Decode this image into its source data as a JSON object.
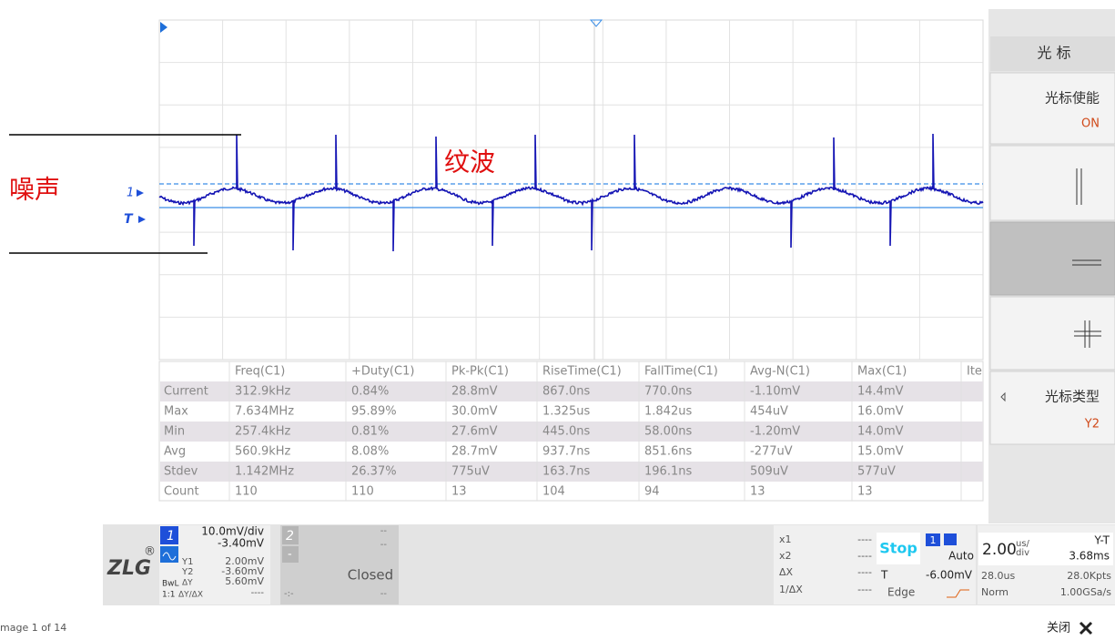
{
  "annotations": {
    "noise": "噪声",
    "ripple": "纹波"
  },
  "markers": {
    "ch1": "1",
    "trigger": "T"
  },
  "table": {
    "header": [
      "Freq(C1)",
      "+Duty(C1)",
      "Pk-Pk(C1)",
      "RiseTime(C1)",
      "FallTime(C1)",
      "Avg-N(C1)",
      "Max(C1)",
      "Ite"
    ],
    "rows": [
      [
        "Current",
        "312.9kHz",
        "0.84%",
        "28.8mV",
        "867.0ns",
        "770.0ns",
        "-1.10mV",
        "14.4mV"
      ],
      [
        "Max",
        "7.634MHz",
        "95.89%",
        "30.0mV",
        "1.325us",
        "1.842us",
        "454uV",
        "16.0mV"
      ],
      [
        "Min",
        "257.4kHz",
        "0.81%",
        "27.6mV",
        "445.0ns",
        "58.00ns",
        "-1.20mV",
        "14.0mV"
      ],
      [
        "Avg",
        "560.9kHz",
        "8.08%",
        "28.7mV",
        "937.7ns",
        "851.6ns",
        "-277uV",
        "15.0mV"
      ],
      [
        "Stdev",
        "1.142MHz",
        "26.37%",
        "775uV",
        "163.7ns",
        "196.1ns",
        "509uV",
        "577uV"
      ],
      [
        "Count",
        "110",
        "110",
        "13",
        "104",
        "94",
        "13",
        "13"
      ]
    ]
  },
  "menu": {
    "title": "光 标",
    "enable": {
      "label": "光标使能",
      "value": "ON"
    },
    "type": {
      "label": "光标类型",
      "value": "Y2"
    }
  },
  "status": {
    "logo": "ZLG",
    "reg": "®",
    "ch1": {
      "num": "1",
      "scale": "10.0mV/div",
      "offset": "-3.40mV",
      "y1_label": "Y1",
      "y1": "2.00mV",
      "y2_label": "Y2",
      "y2": "-3.60mV",
      "bwl": "BwL",
      "dy_label": "ΔY",
      "dy": "5.60mV",
      "ratio": "1:1",
      "dydx_label": "ΔY/ΔX",
      "dydx": "----"
    },
    "ch2": {
      "num": "2",
      "a": "--",
      "b": "--",
      "minus": "-",
      "state": "Closed",
      "c": "-:-",
      "d": "--"
    },
    "cursor_x": {
      "x1_label": "x1",
      "x1": "----",
      "x2_label": "x2",
      "x2": "----",
      "dx_label": "ΔX",
      "dx": "----",
      "inv_label": "1/ΔX",
      "inv": "----"
    },
    "trigger": {
      "run": "Stop",
      "source": "1",
      "mode": "Auto",
      "t_label": "T",
      "level": "-6.00mV",
      "type": "Edge"
    },
    "timebase": {
      "value": "2.00",
      "unit_top": "us/",
      "unit_bottom": "div",
      "mode": "Y-T",
      "time": "3.68ms",
      "delay": "28.0us",
      "points": "28.0Kpts",
      "acq": "Norm",
      "rate": "1.00GSa/s"
    }
  },
  "footer": {
    "page": "mage 1 of 14",
    "close": "关闭"
  }
}
